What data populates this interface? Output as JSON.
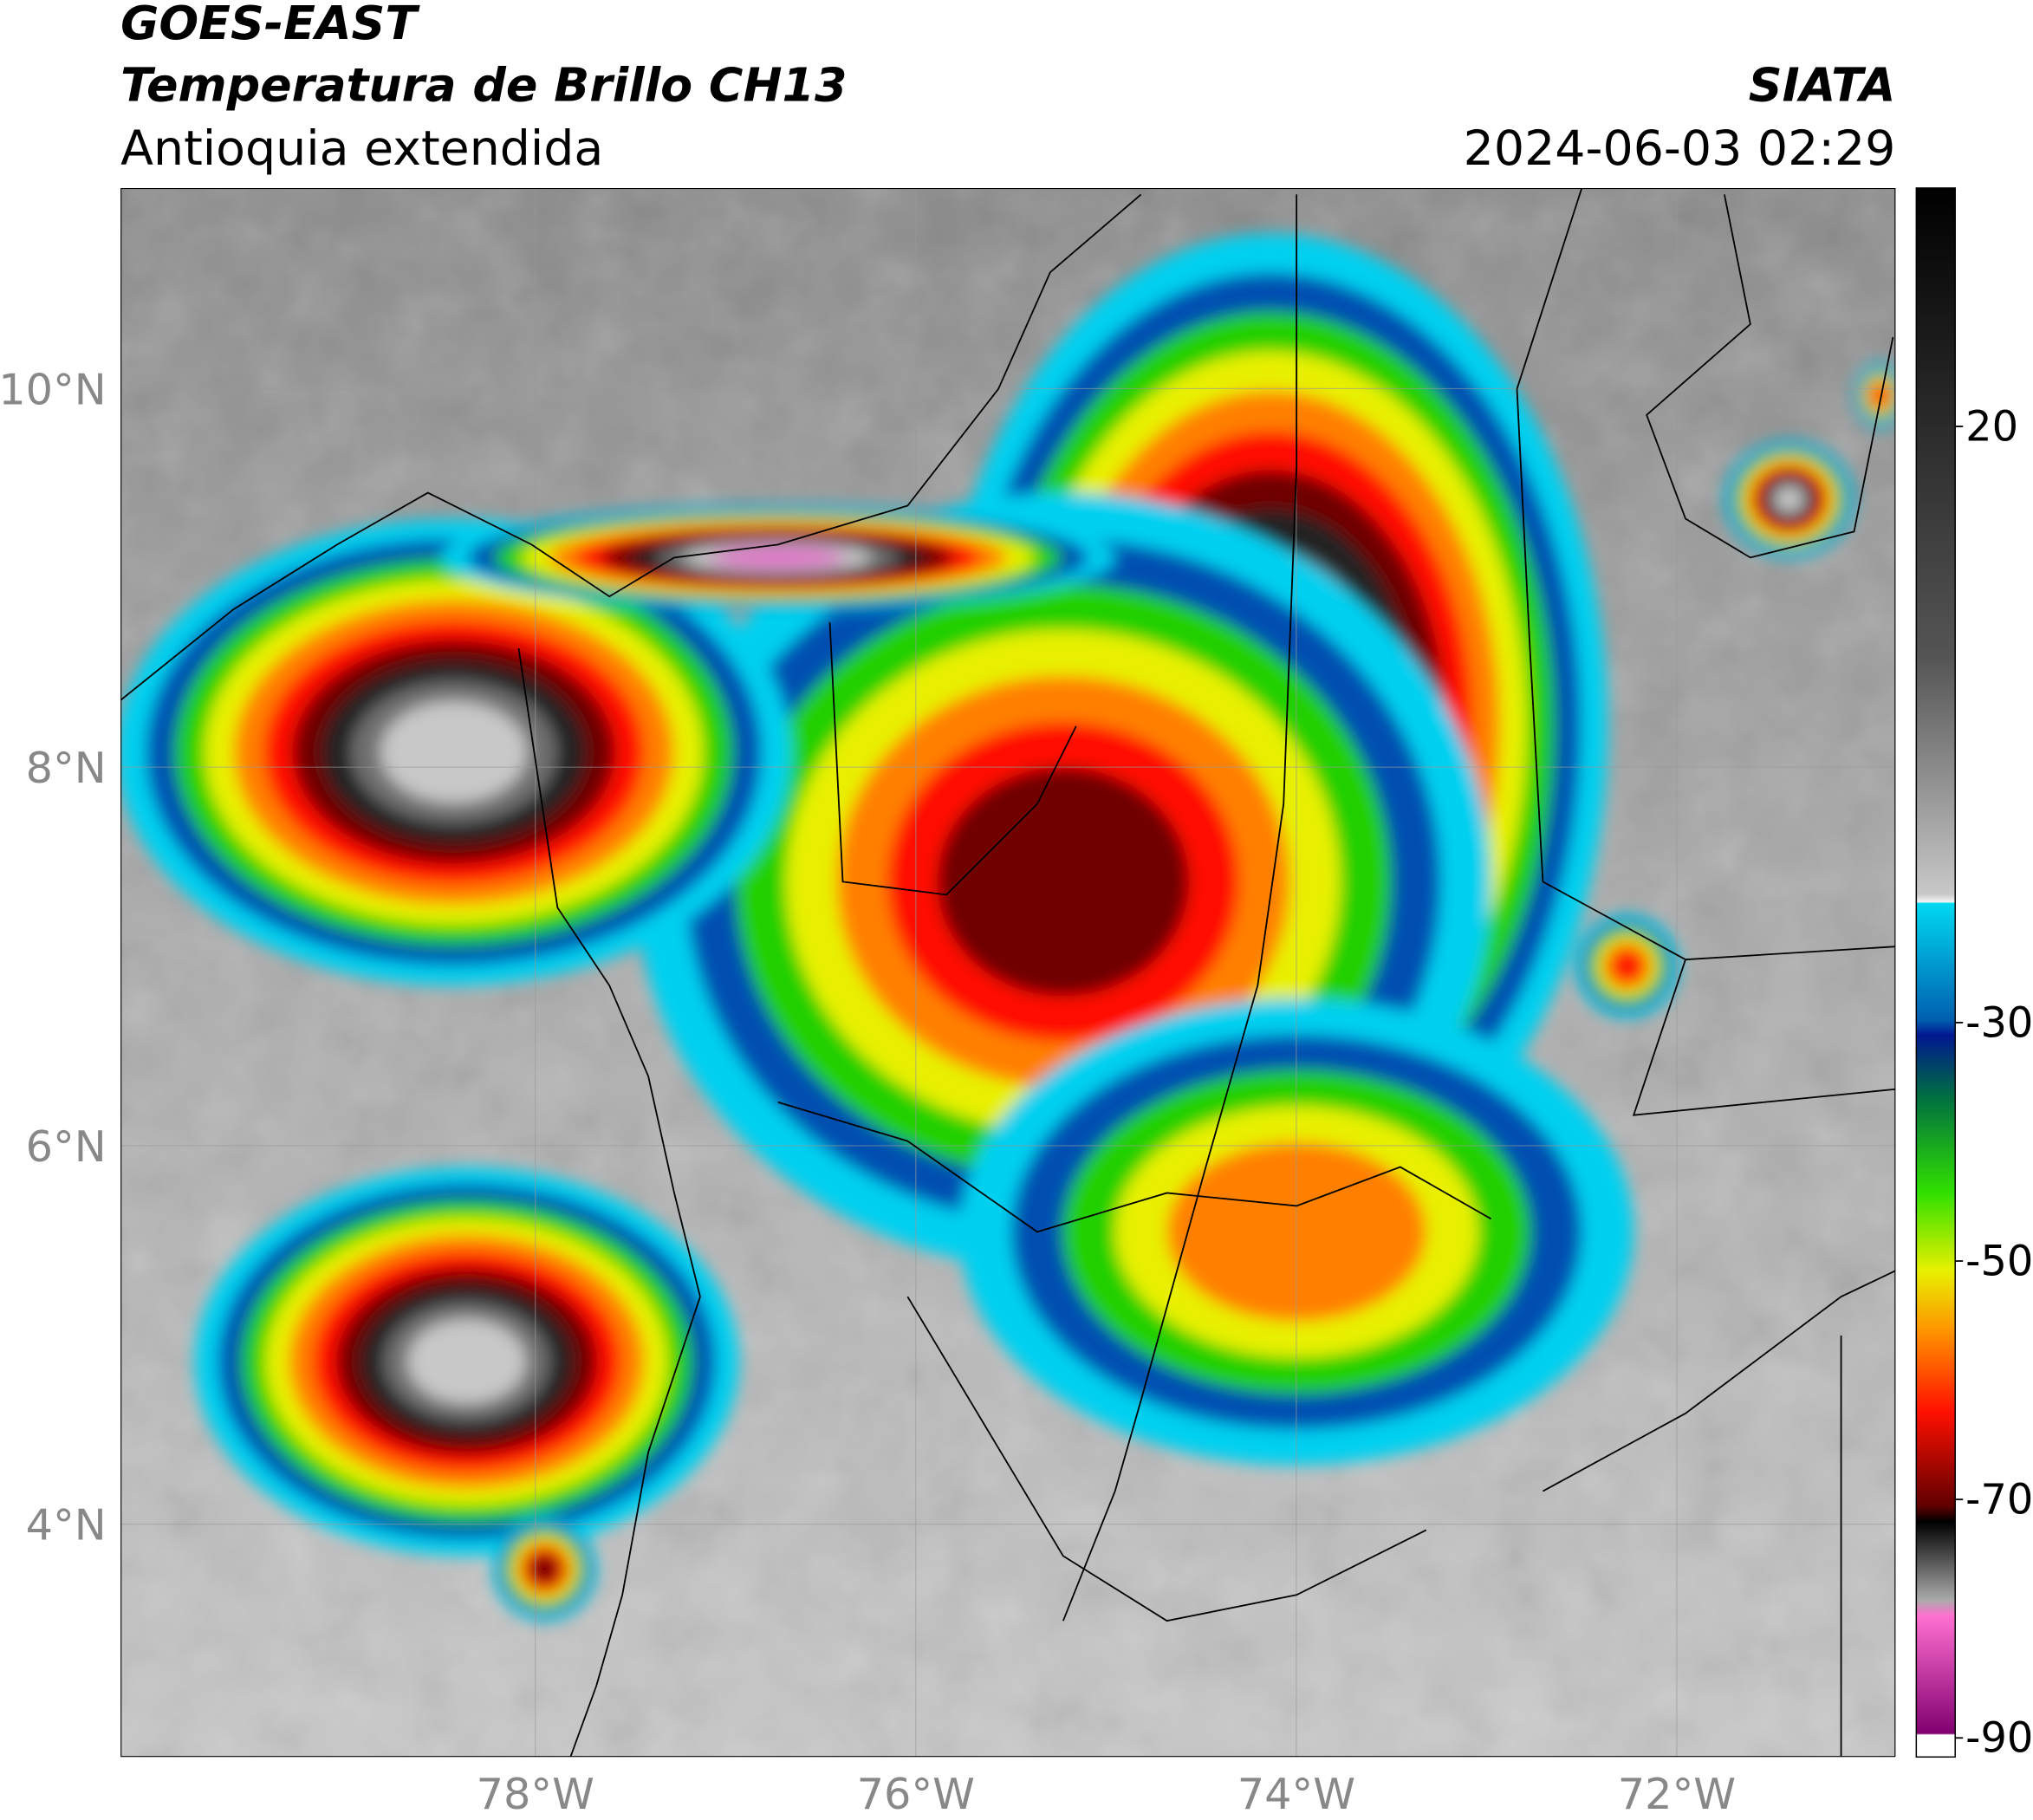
{
  "header": {
    "source": "GOES-EAST",
    "title": "Temperatura de Brillo CH13",
    "region": "Antioquia extendida",
    "agency": "SIATA",
    "datetime": "2024-06-03 02:29"
  },
  "map": {
    "xlim": [
      -80.18,
      -70.85
    ],
    "ylim": [
      2.77,
      11.06
    ],
    "xticks": [
      {
        "value": -78,
        "label": "78°W"
      },
      {
        "value": -76,
        "label": "76°W"
      },
      {
        "value": -74,
        "label": "74°W"
      },
      {
        "value": -72,
        "label": "72°W"
      }
    ],
    "yticks": [
      {
        "value": 10,
        "label": "10°N"
      },
      {
        "value": 8,
        "label": "8°N"
      },
      {
        "value": 6,
        "label": "6°N"
      },
      {
        "value": 4,
        "label": "4°N"
      }
    ]
  },
  "colorbar": {
    "lim": [
      -91.6,
      40
    ],
    "ticks": [
      20,
      -30,
      -50,
      -70,
      -90
    ]
  }
}
